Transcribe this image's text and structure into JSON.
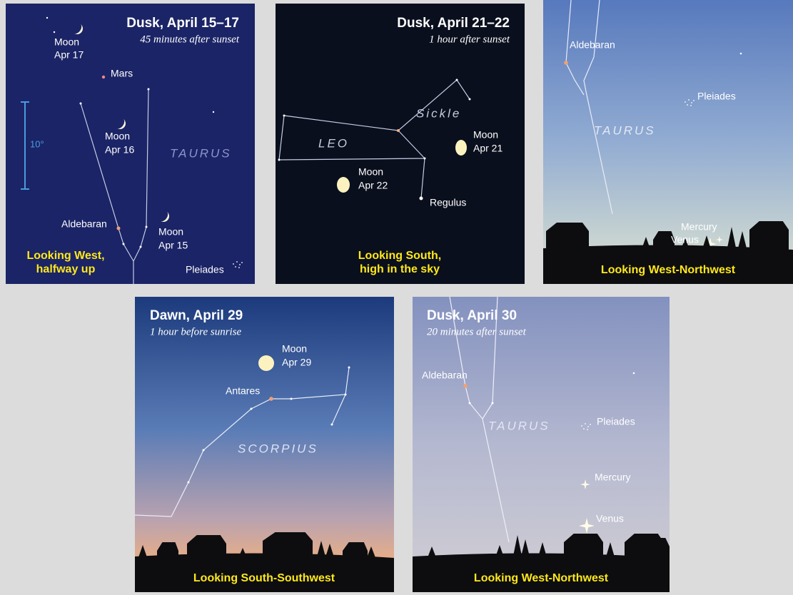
{
  "panels": [
    {
      "title": "Dusk, April 15–17",
      "subtitle": "45 minutes after sunset",
      "caption": [
        "Looking West,",
        "halfway up"
      ],
      "labels": [
        "Moon",
        "Apr 17",
        "Mars",
        "Moon",
        "Apr 16",
        "TAURUS",
        "10°",
        "Aldebaran",
        "Moon",
        "Apr 15",
        "Pleiades"
      ]
    },
    {
      "title": "Dusk, April 21–22",
      "subtitle": "1 hour after sunset",
      "caption": [
        "Looking South,",
        "high in the sky"
      ],
      "labels": [
        "Sickle",
        "LEO",
        "Moon",
        "Apr 21",
        "Moon",
        "Apr 22",
        "Regulus"
      ]
    },
    {
      "caption": [
        "Looking West-Northwest"
      ],
      "labels": [
        "Aldebaran",
        "Pleiades",
        "TAURUS",
        "Mercury",
        "Venus"
      ]
    },
    {
      "title": "Dawn, April 29",
      "subtitle": "1 hour before sunrise",
      "caption": [
        "Looking South-Southwest"
      ],
      "labels": [
        "Moon",
        "Apr 29",
        "Antares",
        "SCORPIUS"
      ]
    },
    {
      "title": "Dusk, April 30",
      "subtitle": "20 minutes after sunset",
      "caption": [
        "Looking West-Northwest"
      ],
      "labels": [
        "Aldebaran",
        "TAURUS",
        "Pleiades",
        "Mercury",
        "Venus"
      ]
    }
  ]
}
